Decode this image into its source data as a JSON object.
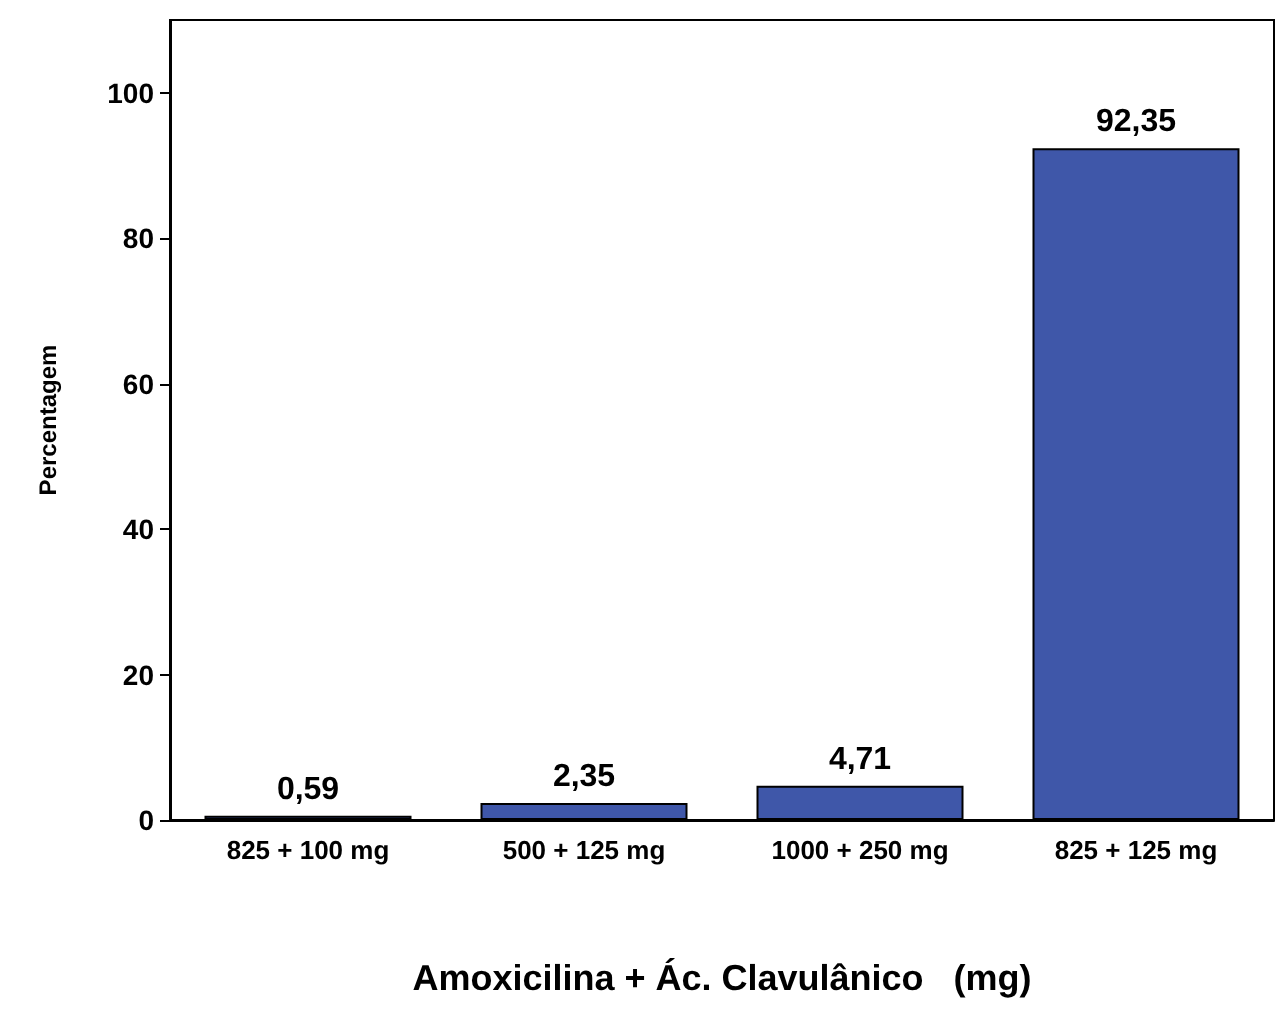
{
  "chart_data": {
    "type": "bar",
    "xlabel": "Amoxicilina + Ác. Clavulânico   (mg)",
    "ylabel": "Percentagem",
    "categories": [
      "825 + 100 mg",
      "500 + 125 mg",
      "1000 + 250 mg",
      "825 + 125 mg"
    ],
    "values": [
      0.59,
      2.35,
      4.71,
      92.35
    ],
    "value_labels": [
      "0,59",
      "2,35",
      "4,71",
      "92,35"
    ],
    "color": "#3f57a9",
    "ylim": [
      0,
      110
    ],
    "yticks": [
      0,
      20,
      40,
      60,
      80,
      100
    ],
    "grid": false
  }
}
